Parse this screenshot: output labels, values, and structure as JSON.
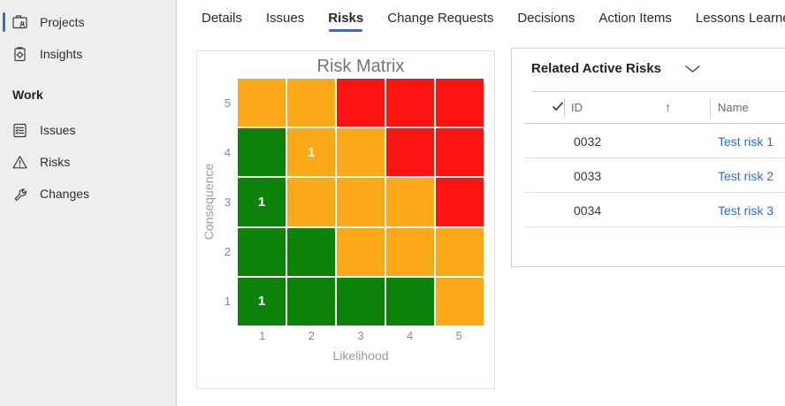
{
  "accent_color": "#2b6cd8",
  "sidebar": {
    "items": [
      {
        "label": "Projects",
        "icon": "projects-icon",
        "selected": true
      },
      {
        "label": "Insights",
        "icon": "insights-icon",
        "selected": false
      }
    ],
    "section_label": "Work",
    "work_items": [
      {
        "label": "Issues",
        "icon": "issues-icon"
      },
      {
        "label": "Risks",
        "icon": "warning-triangle-icon"
      },
      {
        "label": "Changes",
        "icon": "wrench-icon"
      }
    ]
  },
  "tabs": {
    "active": "Risks",
    "items": [
      {
        "label": "Details"
      },
      {
        "label": "Issues"
      },
      {
        "label": "Risks"
      },
      {
        "label": "Change Requests"
      },
      {
        "label": "Decisions"
      },
      {
        "label": "Action Items"
      },
      {
        "label": "Lessons Learned"
      }
    ]
  },
  "chart_data": {
    "type": "heatmap",
    "title": "Risk Matrix",
    "xlabel": "Likelihood",
    "ylabel": "Consequence",
    "x_ticks": [
      "1",
      "2",
      "3",
      "4",
      "5"
    ],
    "y_ticks_top_to_bottom": [
      "5",
      "4",
      "3",
      "2",
      "1"
    ],
    "palette": {
      "green": "#0b830b",
      "orange": "#fba819",
      "red": "#fb1412"
    },
    "grid_note": "rows ordered consequence 5 (top) to 1 (bottom), columns likelihood 1-5",
    "grid": [
      [
        "orange",
        "orange",
        "red",
        "red",
        "red"
      ],
      [
        "green",
        "orange",
        "orange",
        "red",
        "red"
      ],
      [
        "green",
        "orange",
        "orange",
        "orange",
        "red"
      ],
      [
        "green",
        "green",
        "orange",
        "orange",
        "orange"
      ],
      [
        "green",
        "green",
        "green",
        "green",
        "orange"
      ]
    ],
    "counts": [
      [
        null,
        null,
        null,
        null,
        null
      ],
      [
        null,
        1,
        null,
        null,
        null
      ],
      [
        1,
        null,
        null,
        null,
        null
      ],
      [
        null,
        null,
        null,
        null,
        null
      ],
      [
        1,
        null,
        null,
        null,
        null
      ]
    ]
  },
  "risk_panel": {
    "title": "Related Active Risks",
    "chevron_icon": "chevron-down-icon",
    "select_all_icon": "checkmark-icon",
    "columns": {
      "id": "ID",
      "name": "Name"
    },
    "sort_indicator": "↑",
    "rows": [
      {
        "id": "0032",
        "name": "Test risk 1"
      },
      {
        "id": "0033",
        "name": "Test risk 2"
      },
      {
        "id": "0034",
        "name": "Test risk 3"
      }
    ]
  }
}
